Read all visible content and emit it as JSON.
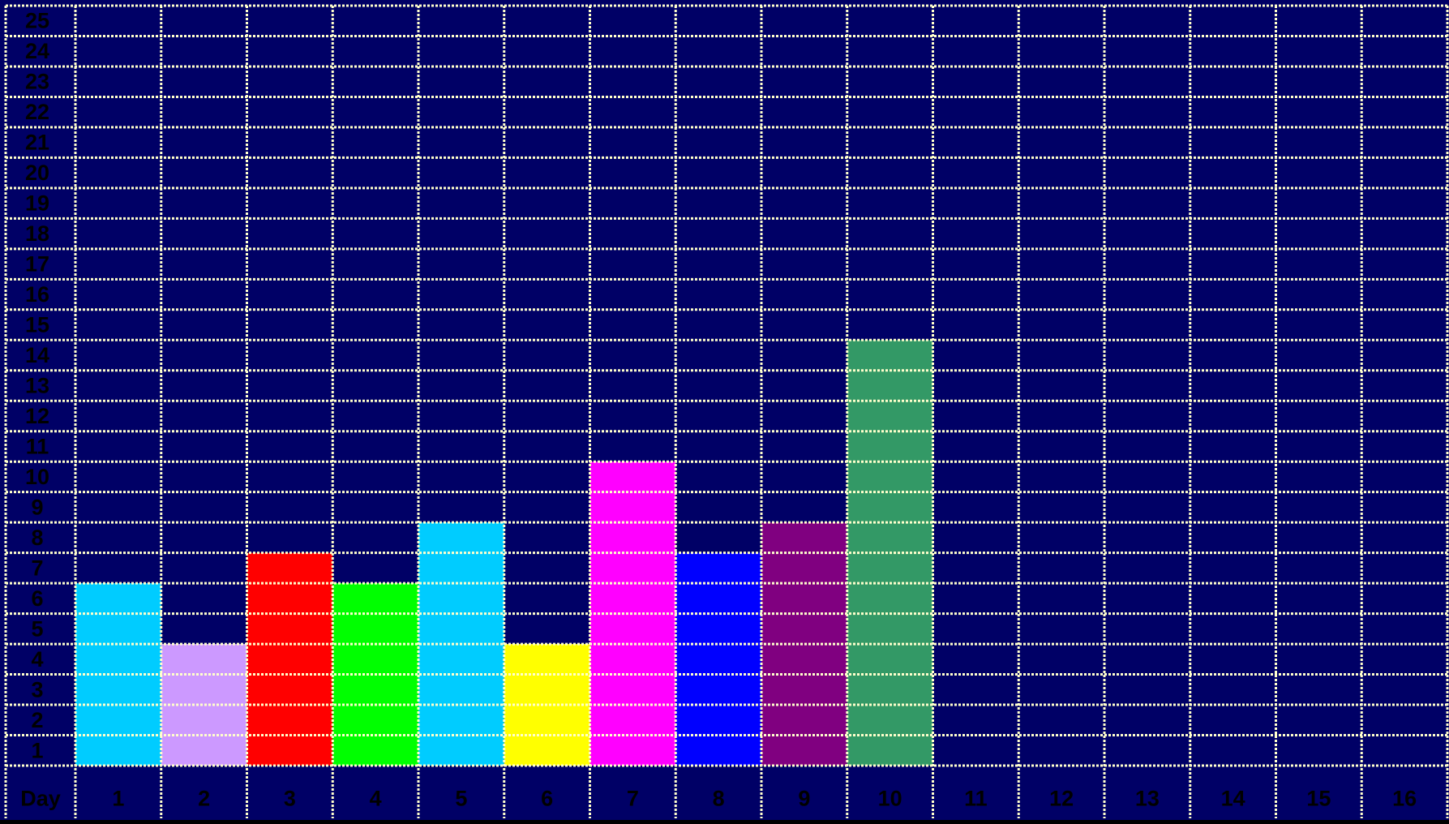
{
  "chart_data": {
    "type": "bar",
    "title": "",
    "x_axis_label": "Day",
    "categories": [
      "1",
      "2",
      "3",
      "4",
      "5",
      "6",
      "7",
      "8",
      "9",
      "10",
      "11",
      "12",
      "13",
      "14",
      "15",
      "16"
    ],
    "values": [
      6,
      4,
      7,
      6,
      8,
      4,
      10,
      7,
      8,
      14,
      0,
      0,
      0,
      0,
      0,
      0
    ],
    "bar_colors": [
      "#00ccff",
      "#cc99ff",
      "#ff0000",
      "#00ff00",
      "#00ccff",
      "#ffff00",
      "#ff00ff",
      "#0000ff",
      "#800080",
      "#339966",
      "#00ccff",
      "#00ccff",
      "#00ccff",
      "#00ccff",
      "#00ccff",
      "#00ccff"
    ],
    "y_ticks": [
      1,
      2,
      3,
      4,
      5,
      6,
      7,
      8,
      9,
      10,
      11,
      12,
      13,
      14,
      15,
      16,
      17,
      18,
      19,
      20,
      21,
      22,
      23,
      24,
      25
    ],
    "ylim": [
      0,
      25
    ],
    "grid": true,
    "legend": "none",
    "colors": {
      "background": "#000066",
      "grid_line": "#ffffcc",
      "label_text": "#000000"
    }
  }
}
